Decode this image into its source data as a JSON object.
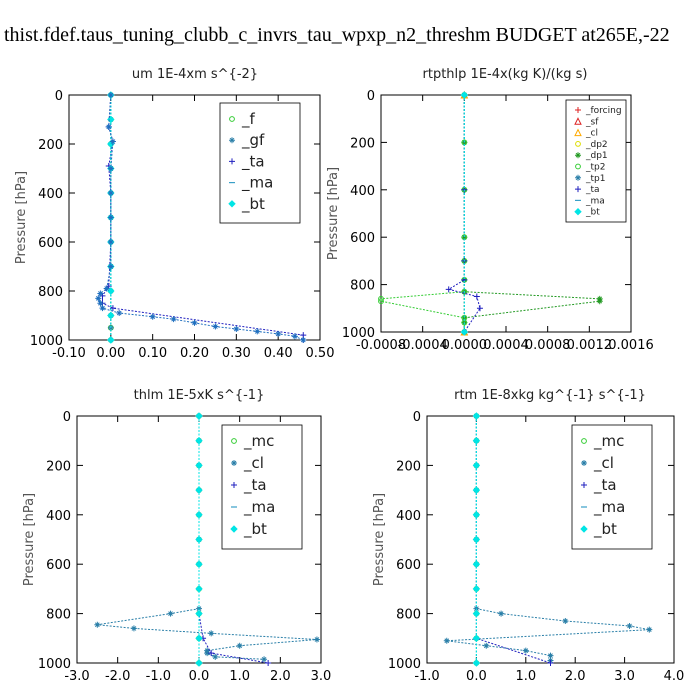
{
  "figure_title": "thist.fdef.taus_tuning_clubb_c_invrs_tau_wpxp_n2_threshm  BUDGET at265E,-22",
  "chart_data": [
    {
      "type": "line",
      "title": "um   1E-4xm  s^{-2}",
      "ylabel": "Pressure [hPa]",
      "xlim": [
        -0.1,
        0.5
      ],
      "ylim": [
        1000,
        0
      ],
      "xticks": [
        "-0.10",
        "0.00",
        "0.10",
        "0.20",
        "0.30",
        "0.40",
        "0.50"
      ],
      "xtick_values": [
        -0.1,
        0.0,
        0.1,
        0.2,
        0.3,
        0.4,
        0.5
      ],
      "yticks": [
        "0",
        "200",
        "400",
        "600",
        "800",
        "1000"
      ],
      "ytick_values": [
        0,
        200,
        400,
        600,
        800,
        1000
      ],
      "legend_position": "top-right",
      "series": [
        {
          "name": "_f",
          "color": "#33cc33",
          "marker": "circle",
          "x": [
            0,
            0,
            0,
            0,
            0,
            0,
            0,
            0,
            0,
            0,
            0,
            0
          ],
          "y": [
            0,
            100,
            200,
            300,
            400,
            500,
            600,
            700,
            800,
            900,
            950,
            1000
          ]
        },
        {
          "name": "_gf",
          "color": "#2a7fa8",
          "marker": "star",
          "x": [
            0,
            0,
            0,
            0,
            0,
            0,
            0,
            0,
            0,
            0,
            0,
            0
          ],
          "y": [
            0,
            100,
            200,
            300,
            400,
            500,
            600,
            700,
            800,
            900,
            950,
            1000
          ]
        },
        {
          "name": "_ta",
          "color": "#1f1fbf",
          "marker": "plus",
          "x": [
            0,
            -0.005,
            0.005,
            -0.005,
            0,
            0,
            0,
            -0.005,
            -0.02,
            -0.02,
            0.005,
            0.46,
            0.46
          ],
          "y": [
            0,
            130,
            190,
            290,
            400,
            500,
            600,
            780,
            820,
            850,
            870,
            980,
            1000
          ]
        },
        {
          "name": "_ma",
          "color": "#3aa0c8",
          "marker": "dash",
          "x": [
            0,
            0,
            0,
            0,
            0,
            0,
            0,
            0,
            0,
            0,
            0
          ],
          "y": [
            0,
            100,
            200,
            300,
            400,
            500,
            600,
            700,
            800,
            900,
            1000
          ]
        },
        {
          "name": "_bt",
          "color": "#00e5e5",
          "marker": "diamond",
          "x": [
            0,
            0,
            0,
            0,
            0,
            0,
            0,
            0,
            0,
            0,
            0
          ],
          "y": [
            0,
            100,
            200,
            300,
            400,
            500,
            600,
            700,
            800,
            900,
            1000
          ]
        }
      ],
      "highlight_series": {
        "name": "_gf",
        "color": "#1f6fbf",
        "x": [
          0,
          -0.005,
          0.005,
          0,
          0,
          0,
          0,
          0,
          -0.01,
          -0.025,
          -0.03,
          -0.025,
          -0.02,
          0.02,
          0.1,
          0.15,
          0.2,
          0.25,
          0.3,
          0.35,
          0.4,
          0.44,
          0.46
        ],
        "y": [
          0,
          130,
          190,
          300,
          400,
          500,
          600,
          700,
          790,
          810,
          830,
          850,
          870,
          890,
          905,
          915,
          930,
          945,
          955,
          965,
          975,
          985,
          1000
        ]
      }
    },
    {
      "type": "line",
      "title": "rtpthlp   1E-4x(kg K)/(kg s)",
      "ylabel": "Pressure [hPa]",
      "xlim": [
        -0.0008,
        0.0016
      ],
      "ylim": [
        1000,
        0
      ],
      "xticks": [
        "-0.0008",
        "-0.0004",
        "0.0000",
        "0.0004",
        "0.0008",
        "0.0012",
        "0.0016"
      ],
      "xtick_values": [
        -0.0008,
        -0.0004,
        0.0,
        0.0004,
        0.0008,
        0.0012,
        0.0016
      ],
      "yticks": [
        "0",
        "200",
        "400",
        "600",
        "800",
        "1000"
      ],
      "ytick_values": [
        0,
        200,
        400,
        600,
        800,
        1000
      ],
      "legend_position": "top-right",
      "series": [
        {
          "name": "_forcing",
          "color": "#dd2222",
          "marker": "plus",
          "x": [
            0,
            0
          ],
          "y": [
            0,
            1000
          ]
        },
        {
          "name": "_sf",
          "color": "#dd2222",
          "marker": "triangle",
          "x": [
            0,
            0
          ],
          "y": [
            0,
            1000
          ]
        },
        {
          "name": "_cl",
          "color": "#ffaa00",
          "marker": "triangle",
          "x": [
            0,
            0
          ],
          "y": [
            0,
            1000
          ]
        },
        {
          "name": "_dp2",
          "color": "#dddd00",
          "marker": "circle",
          "x": [
            0,
            0
          ],
          "y": [
            0,
            1000
          ]
        },
        {
          "name": "_dp1",
          "color": "#229922",
          "marker": "star",
          "x": [
            0,
            0,
            0,
            0,
            0,
            0,
            0,
            0.0013,
            0.0013,
            0,
            0,
            0
          ],
          "y": [
            0,
            200,
            400,
            600,
            700,
            780,
            830,
            860,
            870,
            940,
            960,
            1000
          ]
        },
        {
          "name": "_tp2",
          "color": "#33cc33",
          "marker": "circle",
          "x": [
            0,
            0,
            0,
            0,
            0,
            0,
            0,
            -0.0008,
            -0.0008,
            0,
            0,
            0
          ],
          "y": [
            0,
            200,
            400,
            600,
            700,
            780,
            830,
            860,
            870,
            940,
            960,
            1000
          ]
        },
        {
          "name": "_tp1",
          "color": "#2a7fa8",
          "marker": "star",
          "x": [
            0,
            0
          ],
          "y": [
            0,
            1000
          ]
        },
        {
          "name": "_ta",
          "color": "#1f1fbf",
          "marker": "plus",
          "x": [
            0,
            0,
            0,
            0,
            -0.00015,
            0.00012,
            0.00015,
            0
          ],
          "y": [
            0,
            400,
            700,
            780,
            820,
            850,
            900,
            1000
          ]
        },
        {
          "name": "_ma",
          "color": "#3aa0c8",
          "marker": "dash",
          "x": [
            0,
            0
          ],
          "y": [
            0,
            1000
          ]
        },
        {
          "name": "_bt",
          "color": "#00e5e5",
          "marker": "diamond",
          "x": [
            0,
            0
          ],
          "y": [
            0,
            1000
          ]
        }
      ]
    },
    {
      "type": "line",
      "title": "thlm   1E-5xK  s^{-1}",
      "ylabel": "Pressure [hPa]",
      "xlim": [
        -3.0,
        3.0
      ],
      "ylim": [
        1000,
        0
      ],
      "xticks": [
        "-3.0",
        "-2.0",
        "-1.0",
        "0.0",
        "1.0",
        "2.0",
        "3.0"
      ],
      "xtick_values": [
        -3.0,
        -2.0,
        -1.0,
        0.0,
        1.0,
        2.0,
        3.0
      ],
      "yticks": [
        "0",
        "200",
        "400",
        "600",
        "800",
        "1000"
      ],
      "ytick_values": [
        0,
        200,
        400,
        600,
        800,
        1000
      ],
      "legend_position": "top-right",
      "series": [
        {
          "name": "_mc",
          "color": "#33cc33",
          "marker": "circle",
          "x": [
            0,
            0,
            0,
            0,
            0,
            0,
            0,
            0,
            0,
            0,
            0
          ],
          "y": [
            0,
            100,
            200,
            300,
            400,
            500,
            600,
            700,
            800,
            900,
            1000
          ]
        },
        {
          "name": "_cl",
          "color": "#2a7fa8",
          "marker": "star",
          "x": [
            0,
            0,
            0,
            0,
            0,
            0,
            0,
            0,
            -0.7,
            -2.5,
            -1.6,
            0.3,
            2.9,
            1.0,
            0.2,
            0.2,
            0.4,
            1.6
          ],
          "y": [
            0,
            100,
            200,
            300,
            400,
            500,
            600,
            780,
            800,
            845,
            860,
            880,
            905,
            930,
            950,
            960,
            975,
            985
          ]
        },
        {
          "name": "_ta",
          "color": "#1f1fbf",
          "marker": "plus",
          "x": [
            0,
            0,
            0,
            0,
            0,
            0,
            0,
            0,
            0,
            0.1,
            0.3,
            1.7
          ],
          "y": [
            0,
            100,
            200,
            300,
            400,
            500,
            600,
            700,
            800,
            900,
            960,
            1000
          ]
        },
        {
          "name": "_ma",
          "color": "#3aa0c8",
          "marker": "dash",
          "x": [
            0,
            0,
            0,
            0,
            0,
            0,
            0,
            0,
            0,
            0,
            0
          ],
          "y": [
            0,
            100,
            200,
            300,
            400,
            500,
            600,
            700,
            800,
            900,
            1000
          ]
        },
        {
          "name": "_bt",
          "color": "#00e5e5",
          "marker": "diamond",
          "x": [
            0,
            0,
            0,
            0,
            0,
            0,
            0,
            0,
            0,
            0,
            0
          ],
          "y": [
            0,
            100,
            200,
            300,
            400,
            500,
            600,
            700,
            800,
            900,
            1000
          ]
        }
      ]
    },
    {
      "type": "line",
      "title": "rtm   1E-8xkg  kg^{-1} s^{-1}",
      "ylabel": "Pressure [hPa]",
      "xlim": [
        -1.0,
        4.0
      ],
      "ylim": [
        1000,
        0
      ],
      "xticks": [
        "-1.0",
        "0.0",
        "1.0",
        "2.0",
        "3.0",
        "4.0"
      ],
      "xtick_values": [
        -1.0,
        0.0,
        1.0,
        2.0,
        3.0,
        4.0
      ],
      "yticks": [
        "0",
        "200",
        "400",
        "600",
        "800",
        "1000"
      ],
      "ytick_values": [
        0,
        200,
        400,
        600,
        800,
        1000
      ],
      "legend_position": "top-right",
      "series": [
        {
          "name": "_mc",
          "color": "#33cc33",
          "marker": "circle",
          "x": [
            0,
            0,
            0,
            0,
            0,
            0,
            0,
            0,
            0,
            0,
            0
          ],
          "y": [
            0,
            100,
            200,
            300,
            400,
            500,
            600,
            700,
            800,
            900,
            1000
          ]
        },
        {
          "name": "_cl",
          "color": "#2a7fa8",
          "marker": "star",
          "x": [
            0,
            0,
            0,
            0,
            0,
            0,
            0,
            0,
            0.5,
            1.8,
            3.1,
            3.5,
            -0.6,
            0.2,
            1.0,
            1.5,
            1.5
          ],
          "y": [
            0,
            100,
            200,
            300,
            400,
            500,
            600,
            780,
            800,
            830,
            850,
            865,
            910,
            930,
            950,
            970,
            990
          ]
        },
        {
          "name": "_ta",
          "color": "#1f1fbf",
          "marker": "plus",
          "x": [
            0,
            0,
            0,
            0,
            0,
            0,
            0,
            0,
            0,
            0,
            1.5
          ],
          "y": [
            0,
            100,
            200,
            300,
            400,
            500,
            600,
            700,
            800,
            900,
            1000
          ]
        },
        {
          "name": "_ma",
          "color": "#3aa0c8",
          "marker": "dash",
          "x": [
            0,
            0,
            0,
            0,
            0,
            0,
            0,
            0,
            0,
            0,
            0
          ],
          "y": [
            0,
            100,
            200,
            300,
            400,
            500,
            600,
            700,
            800,
            900,
            1000
          ]
        },
        {
          "name": "_bt",
          "color": "#00e5e5",
          "marker": "diamond",
          "x": [
            0,
            0,
            0,
            0,
            0,
            0,
            0,
            0,
            0,
            0,
            0
          ],
          "y": [
            0,
            100,
            200,
            300,
            400,
            500,
            600,
            700,
            800,
            900,
            1000
          ]
        }
      ]
    }
  ]
}
